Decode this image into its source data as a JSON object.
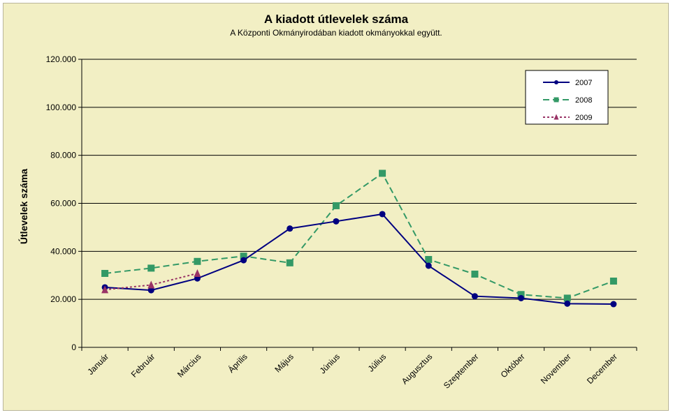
{
  "chart_data": {
    "type": "line",
    "title": "A  kiadott útlevelek száma",
    "subtitle": "A Központi Okmányirodában kiadott okmányokkal együtt.",
    "ylabel": "Útlevelek száma",
    "xlabel": "",
    "ylim": [
      0,
      120000
    ],
    "yticks": [
      0,
      20000,
      40000,
      60000,
      80000,
      100000,
      120000
    ],
    "ytick_labels": [
      "0",
      "20.000",
      "40.000",
      "60.000",
      "80.000",
      "100.000",
      "120.000"
    ],
    "categories": [
      "Január",
      "Február",
      "Március",
      "Április",
      "Május",
      "Június",
      "Július",
      "Augusztus",
      "Szeptember",
      "Október",
      "November",
      "December"
    ],
    "grid": true,
    "legend_position": "top-right",
    "series": [
      {
        "name": "2007",
        "color": "#000080",
        "marker": "diamond",
        "dash": "solid",
        "values": [
          25000,
          23800,
          28700,
          36300,
          49500,
          52500,
          55500,
          34000,
          21300,
          20500,
          18200,
          18000
        ]
      },
      {
        "name": "2008",
        "color": "#339966",
        "marker": "square",
        "dash": "dashed",
        "values": [
          30800,
          33000,
          35800,
          38000,
          35200,
          59000,
          72500,
          36600,
          30500,
          22000,
          20500,
          27600
        ]
      },
      {
        "name": "2009",
        "color": "#993366",
        "marker": "triangle",
        "dash": "dotted",
        "values": [
          24000,
          26000,
          30800,
          null,
          null,
          null,
          null,
          null,
          null,
          null,
          null,
          null
        ]
      }
    ]
  }
}
